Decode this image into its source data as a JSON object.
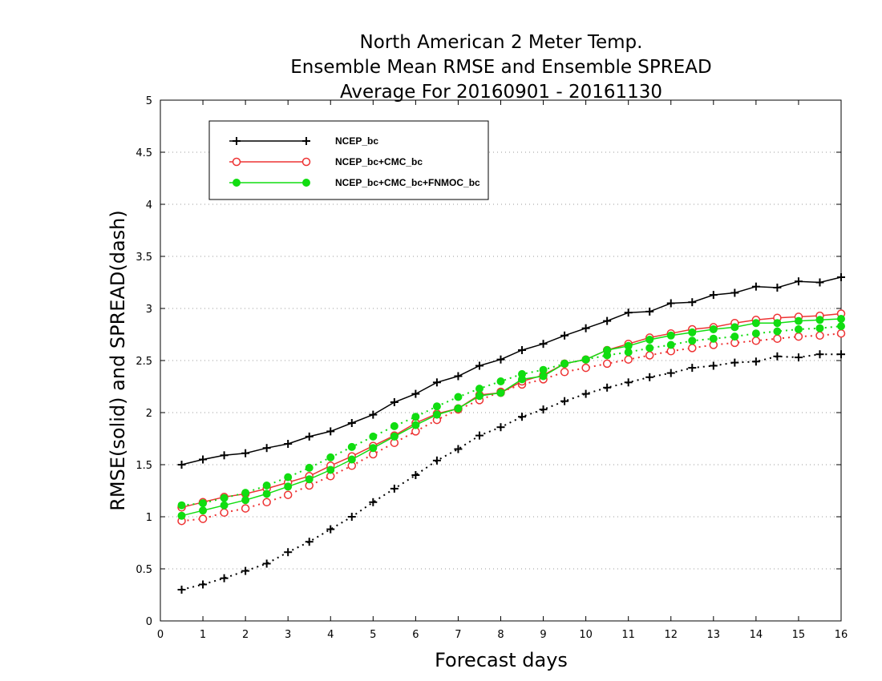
{
  "chart_data": {
    "type": "line",
    "title": [
      "North American 2 Meter Temp.",
      "Ensemble Mean RMSE and Ensemble SPREAD",
      "Average For 20160901 - 20161130"
    ],
    "xlabel": "Forecast days",
    "ylabel": "RMSE(solid) and SPREAD(dash)",
    "xlim": [
      0,
      16
    ],
    "ylim": [
      0,
      5
    ],
    "xticks": [
      0,
      1,
      2,
      3,
      4,
      5,
      6,
      7,
      8,
      9,
      10,
      11,
      12,
      13,
      14,
      15,
      16
    ],
    "xtick_labels": [
      "0",
      "1",
      "2",
      "3",
      "4",
      "5",
      "6",
      "7",
      "8",
      "9",
      "10",
      "11",
      "12",
      "13",
      "14",
      "15",
      "16"
    ],
    "yticks": [
      0,
      0.5,
      1,
      1.5,
      2,
      2.5,
      3,
      3.5,
      4,
      4.5,
      5
    ],
    "ytick_labels": [
      "0",
      "0.5",
      "1",
      "1.5",
      "2",
      "2.5",
      "3",
      "3.5",
      "4",
      "4.5",
      "5"
    ],
    "grid": "horizontal dotted",
    "legend_position": "top-left",
    "x": [
      0.5,
      1,
      1.5,
      2,
      2.5,
      3,
      3.5,
      4,
      4.5,
      5,
      5.5,
      6,
      6.5,
      7,
      7.5,
      8,
      8.5,
      9,
      9.5,
      10,
      10.5,
      11,
      11.5,
      12,
      12.5,
      13,
      13.5,
      14,
      14.5,
      15,
      15.5,
      16
    ],
    "series": [
      {
        "name": "NCEP_bc",
        "color": "#000000",
        "marker": "plus",
        "rmse": [
          1.5,
          1.55,
          1.59,
          1.61,
          1.66,
          1.7,
          1.77,
          1.82,
          1.9,
          1.98,
          2.1,
          2.18,
          2.29,
          2.35,
          2.45,
          2.51,
          2.6,
          2.66,
          2.74,
          2.81,
          2.88,
          2.96,
          2.97,
          3.05,
          3.06,
          3.13,
          3.15,
          3.21,
          3.2,
          3.26,
          3.25,
          3.3
        ],
        "spread": [
          0.3,
          0.35,
          0.41,
          0.48,
          0.55,
          0.66,
          0.76,
          0.88,
          1.0,
          1.14,
          1.27,
          1.4,
          1.54,
          1.65,
          1.78,
          1.86,
          1.96,
          2.03,
          2.11,
          2.18,
          2.24,
          2.29,
          2.34,
          2.38,
          2.43,
          2.45,
          2.48,
          2.49,
          2.54,
          2.53,
          2.56,
          2.56
        ]
      },
      {
        "name": "NCEP_bc+CMC_bc",
        "color": "#ee3333",
        "marker": "open-circle",
        "rmse": [
          1.09,
          1.14,
          1.19,
          1.22,
          1.27,
          1.33,
          1.39,
          1.49,
          1.58,
          1.68,
          1.78,
          1.9,
          1.99,
          2.04,
          2.17,
          2.19,
          2.3,
          2.36,
          2.47,
          2.51,
          2.6,
          2.66,
          2.72,
          2.76,
          2.8,
          2.82,
          2.86,
          2.89,
          2.91,
          2.92,
          2.93,
          2.95
        ],
        "spread": [
          0.96,
          0.98,
          1.04,
          1.08,
          1.14,
          1.21,
          1.3,
          1.39,
          1.49,
          1.6,
          1.71,
          1.82,
          1.93,
          2.03,
          2.12,
          2.2,
          2.27,
          2.32,
          2.39,
          2.43,
          2.47,
          2.51,
          2.55,
          2.59,
          2.62,
          2.65,
          2.67,
          2.69,
          2.71,
          2.73,
          2.74,
          2.76
        ]
      },
      {
        "name": "NCEP_bc+CMC_bc+FNMOC_bc",
        "color": "#11dd11",
        "marker": "filled-circle",
        "rmse": [
          1.01,
          1.06,
          1.11,
          1.16,
          1.22,
          1.29,
          1.36,
          1.45,
          1.55,
          1.66,
          1.77,
          1.88,
          1.98,
          2.04,
          2.16,
          2.19,
          2.32,
          2.35,
          2.47,
          2.51,
          2.6,
          2.64,
          2.7,
          2.74,
          2.77,
          2.8,
          2.82,
          2.86,
          2.86,
          2.88,
          2.89,
          2.9
        ],
        "spread": [
          1.11,
          1.13,
          1.18,
          1.23,
          1.3,
          1.38,
          1.47,
          1.57,
          1.67,
          1.77,
          1.87,
          1.96,
          2.06,
          2.15,
          2.23,
          2.3,
          2.37,
          2.41,
          2.47,
          2.51,
          2.55,
          2.58,
          2.62,
          2.65,
          2.69,
          2.71,
          2.73,
          2.76,
          2.78,
          2.8,
          2.81,
          2.83
        ]
      }
    ]
  }
}
